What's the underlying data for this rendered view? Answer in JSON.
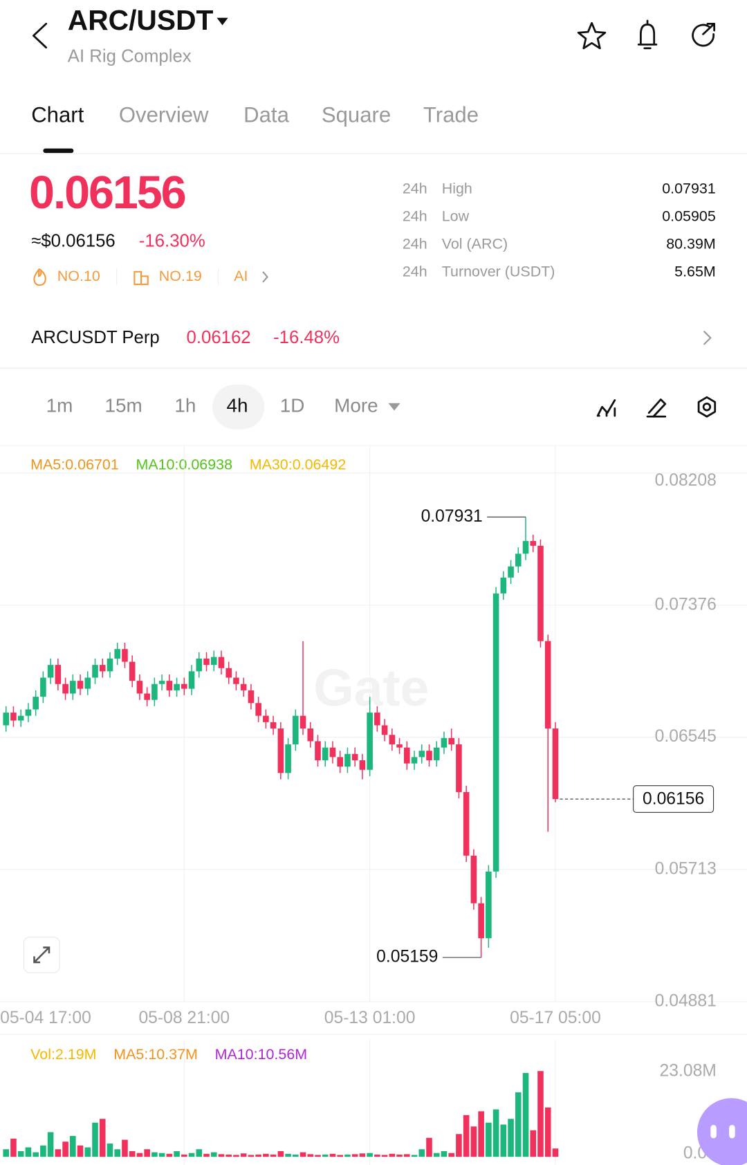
{
  "header": {
    "pair": "ARC/USDT",
    "name": "AI Rig Complex"
  },
  "tabs": [
    "Chart",
    "Overview",
    "Data",
    "Square",
    "Trade"
  ],
  "ticker": {
    "price": "0.06156",
    "usd": "≈$0.06156",
    "change": "-16.30%",
    "badges": [
      "NO.10",
      "NO.19",
      "AI"
    ]
  },
  "stats": [
    [
      "24h",
      "High",
      "0.07931"
    ],
    [
      "24h",
      "Low",
      "0.05905"
    ],
    [
      "24h",
      "Vol (ARC)",
      "80.39M"
    ],
    [
      "24h",
      "Turnover (USDT)",
      "5.65M"
    ]
  ],
  "perp": {
    "name": "ARCUSDT Perp",
    "price": "0.06162",
    "change": "-16.48%"
  },
  "intervals": [
    "1m",
    "15m",
    "1h",
    "4h",
    "1D",
    "More"
  ],
  "watermark": "Gate",
  "chart_data": [
    {
      "type": "candlestick",
      "indicators": [
        {
          "text": "MA5:0.06701",
          "color": "#f0941c"
        },
        {
          "text": "MA10:0.06938",
          "color": "#52c41a"
        },
        {
          "text": "MA30:0.06492",
          "color": "#f5b800"
        }
      ],
      "up_color": "#1db77d",
      "down_color": "#f0315b",
      "grid": true,
      "xlim": [
        -0.8,
        99.8
      ],
      "xticks": [
        {
          "value": -1,
          "label": "05-04 17:00"
        },
        {
          "value": 24,
          "label": "05-08 21:00"
        },
        {
          "value": 49,
          "label": "05-13 01:00"
        },
        {
          "value": 74,
          "label": "05-17 05:00"
        }
      ],
      "ylim": [
        0.04881,
        0.08381
      ],
      "yticks": [
        0.08208,
        0.07376,
        0.06545,
        0.05713,
        0.04881
      ],
      "open": [
        0.0662,
        0.067,
        0.0665,
        0.0668,
        0.0672,
        0.068,
        0.0692,
        0.07,
        0.0688,
        0.0682,
        0.069,
        0.0685,
        0.0692,
        0.07,
        0.0696,
        0.0704,
        0.071,
        0.0702,
        0.069,
        0.0682,
        0.0678,
        0.0688,
        0.069,
        0.0684,
        0.0688,
        0.0685,
        0.0696,
        0.0704,
        0.07,
        0.0705,
        0.0698,
        0.0692,
        0.0688,
        0.0684,
        0.0676,
        0.0668,
        0.0664,
        0.066,
        0.0632,
        0.065,
        0.0668,
        0.066,
        0.0652,
        0.064,
        0.0648,
        0.0642,
        0.0636,
        0.0644,
        0.064,
        0.0634,
        0.067,
        0.0662,
        0.0656,
        0.065,
        0.0648,
        0.0638,
        0.0642,
        0.0646,
        0.064,
        0.0648,
        0.0654,
        0.065,
        0.062,
        0.058,
        0.055,
        0.0528,
        0.057,
        0.0745,
        0.0755,
        0.0762,
        0.077,
        0.0778,
        0.0775,
        0.0715,
        0.066
      ],
      "high": [
        0.0674,
        0.0674,
        0.0672,
        0.0676,
        0.0684,
        0.0696,
        0.0704,
        0.0704,
        0.0692,
        0.0694,
        0.0694,
        0.0696,
        0.0704,
        0.0704,
        0.0708,
        0.0714,
        0.0714,
        0.0706,
        0.0694,
        0.0686,
        0.0692,
        0.0694,
        0.0694,
        0.0692,
        0.0692,
        0.07,
        0.0708,
        0.0708,
        0.0709,
        0.0709,
        0.0702,
        0.0696,
        0.0692,
        0.0688,
        0.068,
        0.0672,
        0.0668,
        0.0664,
        0.0654,
        0.0672,
        0.0715,
        0.0664,
        0.0656,
        0.0652,
        0.0652,
        0.0646,
        0.0648,
        0.0648,
        0.0644,
        0.068,
        0.0674,
        0.0666,
        0.066,
        0.0654,
        0.0652,
        0.0646,
        0.065,
        0.065,
        0.0652,
        0.0658,
        0.066,
        0.0654,
        0.0624,
        0.0584,
        0.0554,
        0.0574,
        0.0749,
        0.0759,
        0.0766,
        0.0774,
        0.07931,
        0.0782,
        0.0779,
        0.0719,
        0.0664
      ],
      "low": [
        0.0658,
        0.0661,
        0.0661,
        0.0664,
        0.0668,
        0.0676,
        0.0688,
        0.0684,
        0.0678,
        0.0678,
        0.0681,
        0.0681,
        0.0688,
        0.0692,
        0.0692,
        0.07,
        0.0698,
        0.0686,
        0.0678,
        0.0674,
        0.0674,
        0.0684,
        0.068,
        0.068,
        0.0681,
        0.0681,
        0.0692,
        0.0696,
        0.0696,
        0.0694,
        0.0688,
        0.0684,
        0.068,
        0.0672,
        0.0664,
        0.066,
        0.0656,
        0.0628,
        0.0628,
        0.0646,
        0.0656,
        0.0648,
        0.0636,
        0.0636,
        0.0638,
        0.0632,
        0.0632,
        0.0636,
        0.0628,
        0.063,
        0.0658,
        0.0652,
        0.0646,
        0.0644,
        0.0634,
        0.0634,
        0.0638,
        0.0636,
        0.0636,
        0.0644,
        0.0646,
        0.0616,
        0.0576,
        0.0546,
        0.05159,
        0.0522,
        0.0566,
        0.0741,
        0.0751,
        0.0758,
        0.0766,
        0.0771,
        0.0711,
        0.0595,
        0.06136
      ],
      "close": [
        0.067,
        0.0665,
        0.0668,
        0.0672,
        0.068,
        0.0692,
        0.07,
        0.0688,
        0.0682,
        0.069,
        0.0685,
        0.0692,
        0.07,
        0.0696,
        0.0704,
        0.071,
        0.0702,
        0.069,
        0.0682,
        0.0678,
        0.0688,
        0.069,
        0.0684,
        0.0688,
        0.0685,
        0.0696,
        0.0704,
        0.07,
        0.0705,
        0.0698,
        0.0692,
        0.0688,
        0.0684,
        0.0676,
        0.0668,
        0.0664,
        0.066,
        0.0632,
        0.065,
        0.0668,
        0.066,
        0.0652,
        0.064,
        0.0648,
        0.0642,
        0.0636,
        0.0644,
        0.064,
        0.0634,
        0.067,
        0.0662,
        0.0656,
        0.065,
        0.0648,
        0.0638,
        0.0642,
        0.0646,
        0.064,
        0.0648,
        0.0654,
        0.065,
        0.062,
        0.058,
        0.055,
        0.0528,
        0.057,
        0.0745,
        0.0755,
        0.0762,
        0.077,
        0.0778,
        0.0775,
        0.0715,
        0.066,
        0.06156
      ]
    },
    {
      "type": "bar",
      "indicators": [
        {
          "text": "Vol:2.19M",
          "color": "#f5b800"
        },
        {
          "text": "MA5:10.37M",
          "color": "#f0941c"
        },
        {
          "text": "MA10:10.56M",
          "color": "#b026d6"
        }
      ],
      "ylim": [
        0,
        23.08
      ],
      "yticks": [
        {
          "value": 23.08,
          "label": "23.08M"
        },
        {
          "value": 0,
          "label": "0.00"
        }
      ],
      "values": [
        2.0,
        4.8,
        1.5,
        2.5,
        1.2,
        3.0,
        6.5,
        2.0,
        4.0,
        5.5,
        3.0,
        2.5,
        9.0,
        10.0,
        3.5,
        2.0,
        4.5,
        1.5,
        1.0,
        2.0,
        1.2,
        1.0,
        0.8,
        1.5,
        0.6,
        1.0,
        2.0,
        0.8,
        1.2,
        0.7,
        0.6,
        0.5,
        0.9,
        0.5,
        0.6,
        0.8,
        0.6,
        1.5,
        0.8,
        0.6,
        1.2,
        0.7,
        0.5,
        0.6,
        0.8,
        0.5,
        0.6,
        0.7,
        0.9,
        1.0,
        0.6,
        0.5,
        0.8,
        0.6,
        0.7,
        0.5,
        2.0,
        5.0,
        1.0,
        1.5,
        1.0,
        6.0,
        11.0,
        8.0,
        12.0,
        9.0,
        12.5,
        8.5,
        10.0,
        17.0,
        22.1,
        7.0,
        22.6,
        13.0,
        2.19
      ]
    }
  ]
}
